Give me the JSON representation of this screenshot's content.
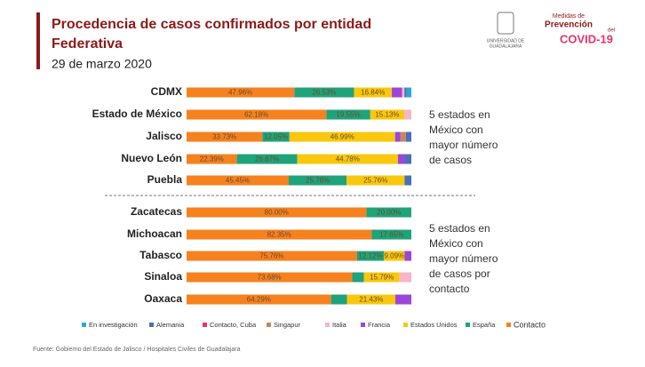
{
  "chart_data": {
    "type": "stacked-bar-horizontal",
    "title": [
      "Procedencia de casos confirmados por entidad",
      "Federativa"
    ],
    "subtitle": "29 de marzo 2020",
    "categories": [
      "CDMX",
      "Estado de México",
      "Jalisco",
      "Nuevo León",
      "Puebla",
      "Zacatecas",
      "Michoacan",
      "Tabasco",
      "Sinaloa",
      "Oaxaca"
    ],
    "xlim": [
      0,
      100
    ],
    "series": [
      {
        "name": "Contacto",
        "color": "#f5821f",
        "values": [
          47.96,
          62.18,
          33.73,
          22.39,
          45.45,
          80.0,
          82.35,
          75.76,
          73.68,
          64.29
        ],
        "value_labels": [
          "47.96%",
          "62.18%",
          "33.73%",
          "22.39%",
          "45.45%",
          "80.00%",
          "82.35%",
          "75.76%",
          "73.68%",
          "64.29%"
        ]
      },
      {
        "name": "España",
        "color": "#1fa37a",
        "values": [
          26.53,
          19.55,
          12.05,
          26.87,
          25.76,
          20.0,
          17.65,
          12.12,
          5.26,
          7.14
        ],
        "value_labels": [
          "26.53%",
          "19.55%",
          "12.05%",
          "26.87%",
          "25.76%",
          "20.00%",
          "17.65%",
          "12.12%",
          null,
          null
        ]
      },
      {
        "name": "Estados Unidos",
        "color": "#f9c80e",
        "values": [
          16.84,
          15.13,
          46.99,
          44.78,
          25.76,
          0,
          0,
          9.09,
          15.79,
          21.43
        ],
        "value_labels": [
          "16.84%",
          "15.13%",
          "46.99%",
          "44.78%",
          "25.76%",
          null,
          null,
          "9.09%",
          "15.79%",
          "21.43%"
        ]
      },
      {
        "name": "Francia",
        "color": "#9b46d8",
        "values": [
          4.59,
          0,
          2.41,
          2.98,
          0,
          0,
          0,
          3.03,
          0,
          7.14
        ]
      },
      {
        "name": "Italia",
        "color": "#f7b6c8",
        "values": [
          1.02,
          3.14,
          0,
          0,
          0,
          0,
          0,
          0,
          5.27,
          0
        ]
      },
      {
        "name": "Singapur",
        "color": "#c8875a",
        "values": [
          0,
          0,
          2.41,
          0,
          0,
          0,
          0,
          0,
          0,
          0
        ]
      },
      {
        "name": "Contacto, Cuba",
        "color": "#e8336b",
        "values": [
          0,
          0,
          0,
          0,
          0,
          0,
          0,
          0,
          0,
          0
        ]
      },
      {
        "name": "Alemania",
        "color": "#4a6fb5",
        "values": [
          1.02,
          0,
          2.41,
          2.99,
          3.03,
          0,
          0,
          0,
          0,
          0
        ]
      },
      {
        "name": "En investigación",
        "color": "#29a8e0",
        "values": [
          2.04,
          0,
          0,
          0,
          0,
          0,
          0,
          0,
          0,
          0
        ]
      }
    ],
    "annotations": [
      [
        "5 estados en",
        "México  con",
        "mayor número",
        "de casos"
      ],
      [
        "5 estados en",
        "México  con",
        "mayor número",
        "de casos por",
        "contacto"
      ]
    ],
    "source": "Fuente: Gobierno del Estado de Jalisco / Hospitales Civiles de Guadalajara"
  },
  "logos": {
    "university": [
      "UNIVERSIDAD DE",
      "GUADALAJARA"
    ],
    "campaign": [
      "Medidas de",
      "Prevención",
      "del",
      "COVID-19"
    ]
  }
}
